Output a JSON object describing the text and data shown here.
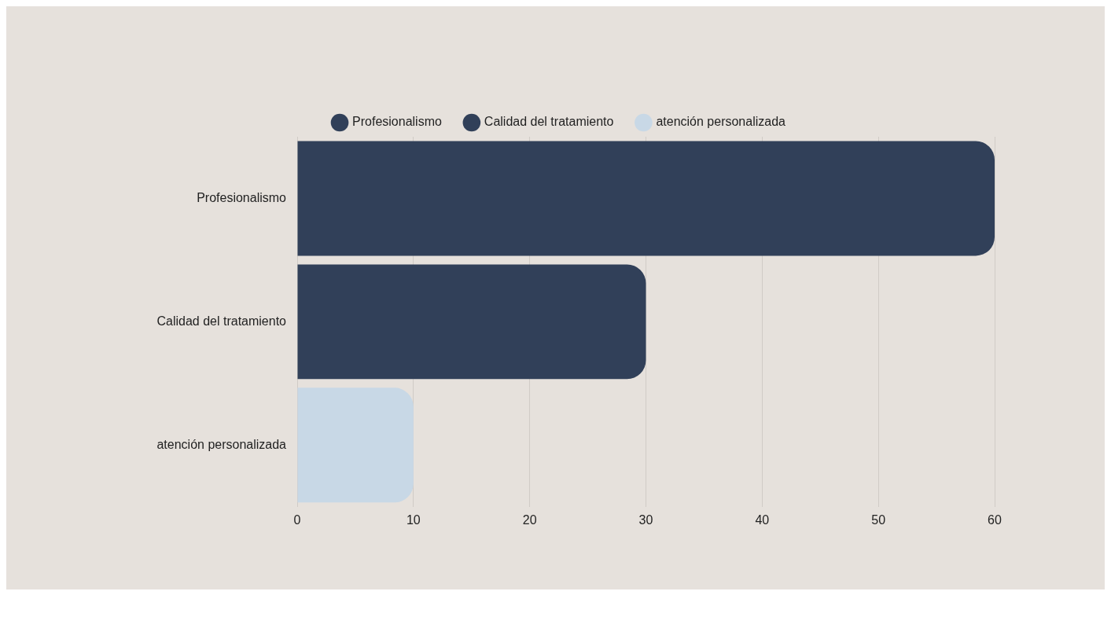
{
  "chart_data": {
    "type": "bar",
    "orientation": "horizontal",
    "stacked": true,
    "categories": [
      "Profesionalismo",
      "Calidad del tratamiento",
      "atención personalizada"
    ],
    "series": [
      {
        "name": "Profesionalismo",
        "color": "#314059",
        "values": [
          60,
          null,
          null
        ]
      },
      {
        "name": "Calidad del tratamiento",
        "color": "#314059",
        "values": [
          null,
          30,
          null
        ]
      },
      {
        "name": "atención personalizada",
        "color": "#c8d8e6",
        "values": [
          null,
          null,
          10
        ]
      }
    ],
    "xlim": [
      0,
      60
    ],
    "xticks": [
      0,
      10,
      20,
      30,
      40,
      50,
      60
    ],
    "grid": "x",
    "legend": "top"
  }
}
